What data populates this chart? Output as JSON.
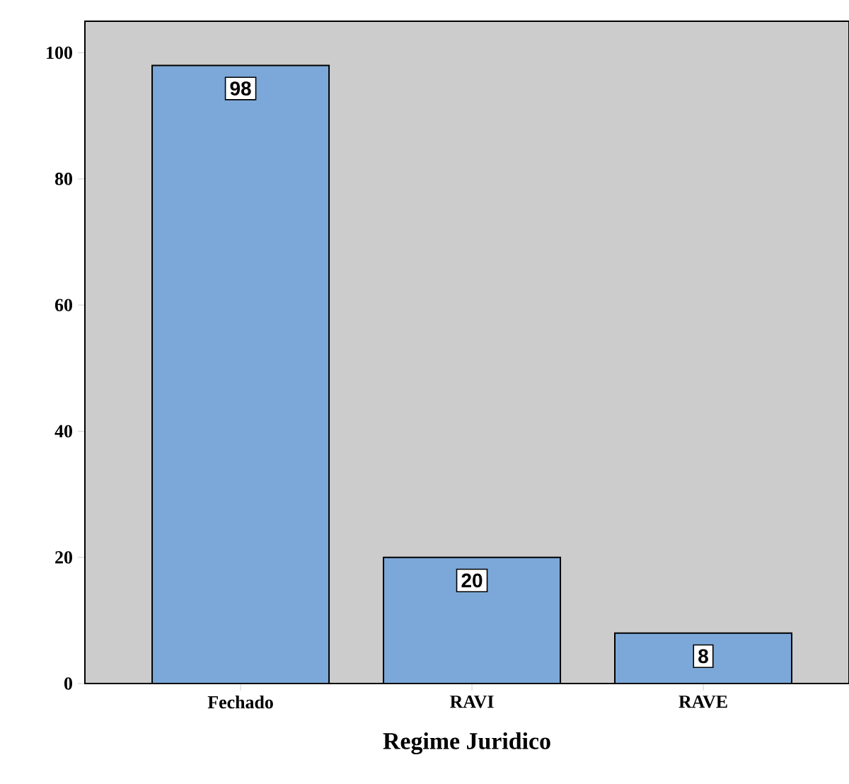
{
  "chart_data": {
    "type": "bar",
    "xlabel": "Regime Juridico",
    "categories": [
      "Fechado",
      "RAVI",
      "RAVE"
    ],
    "values": [
      98,
      20,
      8
    ],
    "color": "#7ba8d8",
    "ylim": [
      0,
      105
    ],
    "yticks": [
      0,
      20,
      40,
      60,
      80,
      100
    ],
    "data_labels": true
  }
}
